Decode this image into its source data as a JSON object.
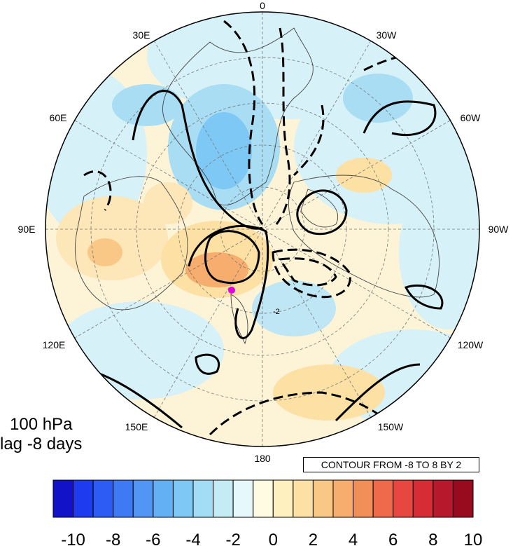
{
  "map": {
    "longitude_labels": {
      "top": "0",
      "top_left": "30E",
      "top_right": "30W",
      "upper_left": "60E",
      "upper_right": "60W",
      "left": "90E",
      "right": "90W",
      "lower_left": "120E",
      "lower_right": "120W",
      "bottom_left": "150E",
      "bottom_right": "150W",
      "bottom": "180"
    },
    "contour_label": "-2",
    "marker_color": "#e000e0"
  },
  "titles": {
    "level": "100 hPa",
    "lag": "lag -8 days"
  },
  "contour_info": "CONTOUR FROM -8 TO 8 BY 2",
  "colorbar": {
    "colors": [
      "#1212c8",
      "#1f3bf0",
      "#2d5cf5",
      "#3f7af5",
      "#5196f5",
      "#63b0f5",
      "#7ec8f5",
      "#a3dcf5",
      "#c4ecf5",
      "#e6f8fb",
      "#fffbe2",
      "#fff0c0",
      "#fde0a3",
      "#fac886",
      "#f7ad6e",
      "#f28e58",
      "#ee6a4a",
      "#e84740",
      "#d52c36",
      "#b8182c",
      "#980a1e"
    ],
    "tick_labels": [
      "-10",
      "-8",
      "-6",
      "-4",
      "-2",
      "0",
      "2",
      "4",
      "6",
      "8",
      "10"
    ]
  }
}
